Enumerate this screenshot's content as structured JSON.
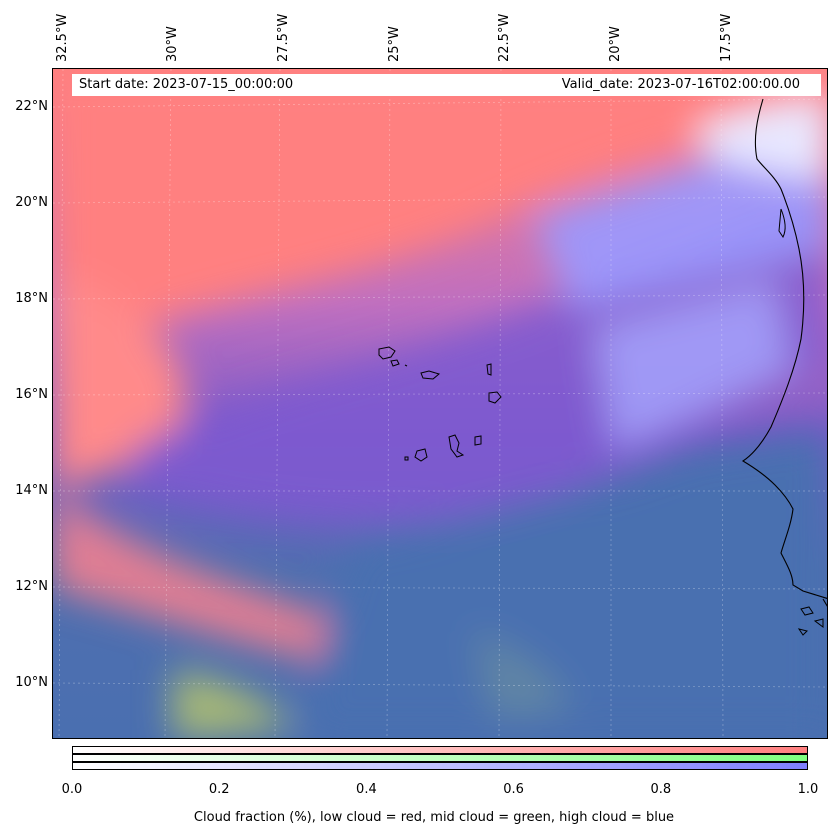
{
  "map": {
    "start_date": "Start date: 2023-07-15_00:00:00",
    "valid_date": "Valid_date: 2023-07-16T02:00:00.00",
    "lon_labels": [
      "32.5°W",
      "30°W",
      "27.5°W",
      "25°W",
      "22.5°W",
      "20°W",
      "17.5°W"
    ],
    "lat_labels": [
      "22°N",
      "20°N",
      "18°N",
      "16°N",
      "14°N",
      "12°N",
      "10°N"
    ],
    "colors": {
      "low_cloud": "#ff7f7f",
      "mid_cloud": "#7fff7f",
      "high_cloud": "#7f7fff",
      "clear_sea": "#4a6fb0",
      "coastline": "#000000"
    }
  },
  "colorbar": {
    "ticks": [
      "0.0",
      "0.2",
      "0.4",
      "0.6",
      "0.8",
      "1.0"
    ],
    "label": "Cloud fraction (%), low cloud = red, mid cloud = green, high cloud = blue"
  }
}
